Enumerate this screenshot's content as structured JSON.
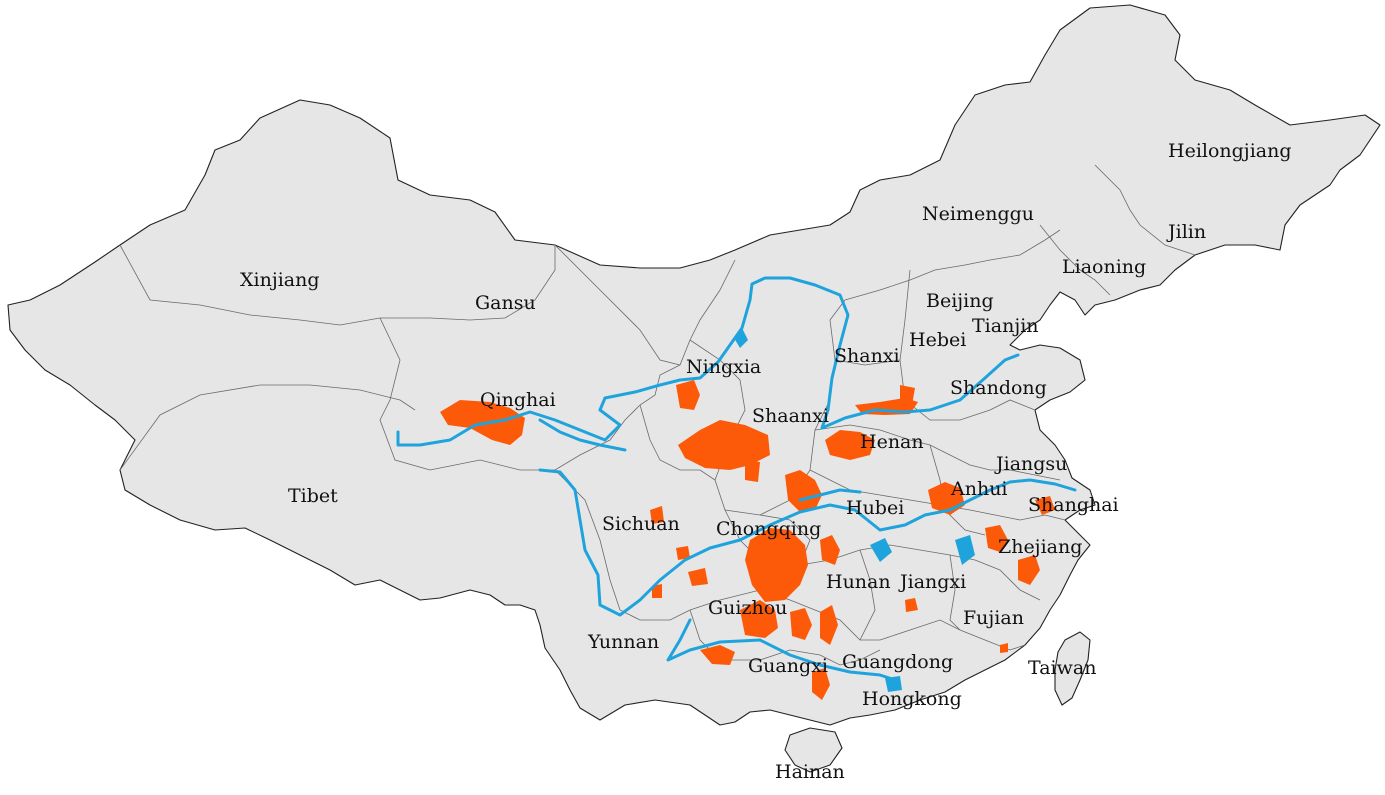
{
  "colors": {
    "land": "#e6e6e6",
    "border": "#222222",
    "rivers": "#1fa3dd",
    "highlighted_areas": "#fc5a08",
    "background": "#ffffff"
  },
  "labels": {
    "heilongjiang": "Heilongjiang",
    "jilin": "Jilin",
    "liaoning": "Liaoning",
    "neimenggu": "Neimenggu",
    "beijing": "Beijing",
    "tianjin": "Tianjin",
    "hebei": "Hebei",
    "shanxi": "Shanxi",
    "shandong": "Shandong",
    "xinjiang": "Xinjiang",
    "gansu": "Gansu",
    "ningxia": "Ningxia",
    "qinghai": "Qinghai",
    "shaanxi": "Shaanxi",
    "henan": "Henan",
    "jiangsu": "Jiangsu",
    "anhui": "Anhui",
    "shanghai": "Shanghai",
    "tibet": "Tibet",
    "sichuan": "Sichuan",
    "chongqing": "Chongqing",
    "hubei": "Hubei",
    "zhejiang": "Zhejiang",
    "hunan": "Hunan",
    "jiangxi": "Jiangxi",
    "guizhou": "Guizhou",
    "yunnan": "Yunnan",
    "fujian": "Fujian",
    "guangxi": "Guangxi",
    "guangdong": "Guangdong",
    "taiwan": "Taiwan",
    "hongkong": "Hongkong",
    "hainan": "Hainan"
  }
}
